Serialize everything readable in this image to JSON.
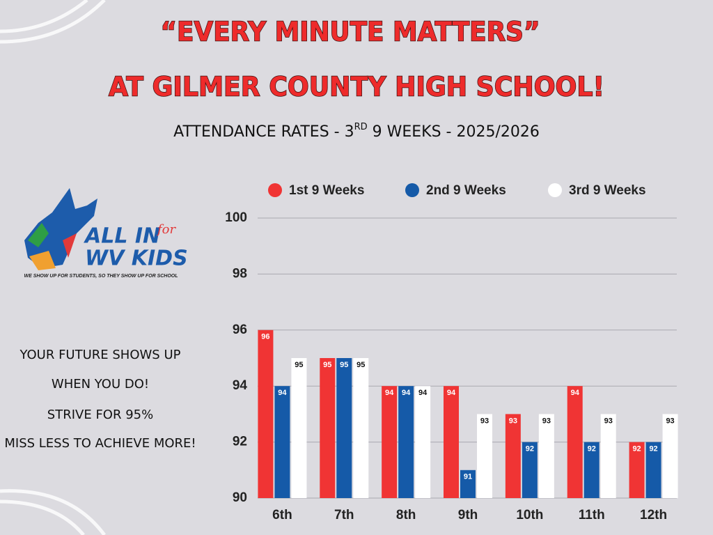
{
  "chart_data": {
    "type": "bar",
    "title": [
      "“EVERY MINUTE MATTERS”",
      "AT GILMER COUNTY HIGH SCHOOL!"
    ],
    "subtitle": [
      "ATTENDANCE RATES - 3",
      "RD",
      " 9 WEEKS - 2025/2026"
    ],
    "categories": [
      "6th",
      "7th",
      "8th",
      "9th",
      "10th",
      "11th",
      "12th"
    ],
    "series": [
      {
        "name": "1st 9 Weeks",
        "color": "#f03434",
        "values": [
          96,
          95,
          94,
          94,
          93,
          94,
          92
        ]
      },
      {
        "name": "2nd 9 Weeks",
        "color": "#155aa8",
        "values": [
          94,
          95,
          94,
          91,
          92,
          92,
          92
        ]
      },
      {
        "name": "3rd 9 Weeks",
        "color": "#ffffff",
        "values": [
          95,
          95,
          94,
          93,
          93,
          93,
          93
        ]
      }
    ],
    "ylim": [
      90,
      100
    ],
    "yticks": [
      90,
      92,
      94,
      96,
      98,
      100
    ],
    "grid": true,
    "legend": "top",
    "data_labels": true
  },
  "logo": {
    "line1": "ALL IN",
    "for": "for",
    "line2": "WV KIDS",
    "tagline": "WE SHOW UP FOR STUDENTS, SO THEY SHOW UP FOR SCHOOL"
  },
  "message": [
    "YOUR FUTURE SHOWS UP",
    "WHEN YOU DO!",
    "STRIVE FOR 95%",
    "MISS LESS TO ACHIEVE MORE!"
  ]
}
